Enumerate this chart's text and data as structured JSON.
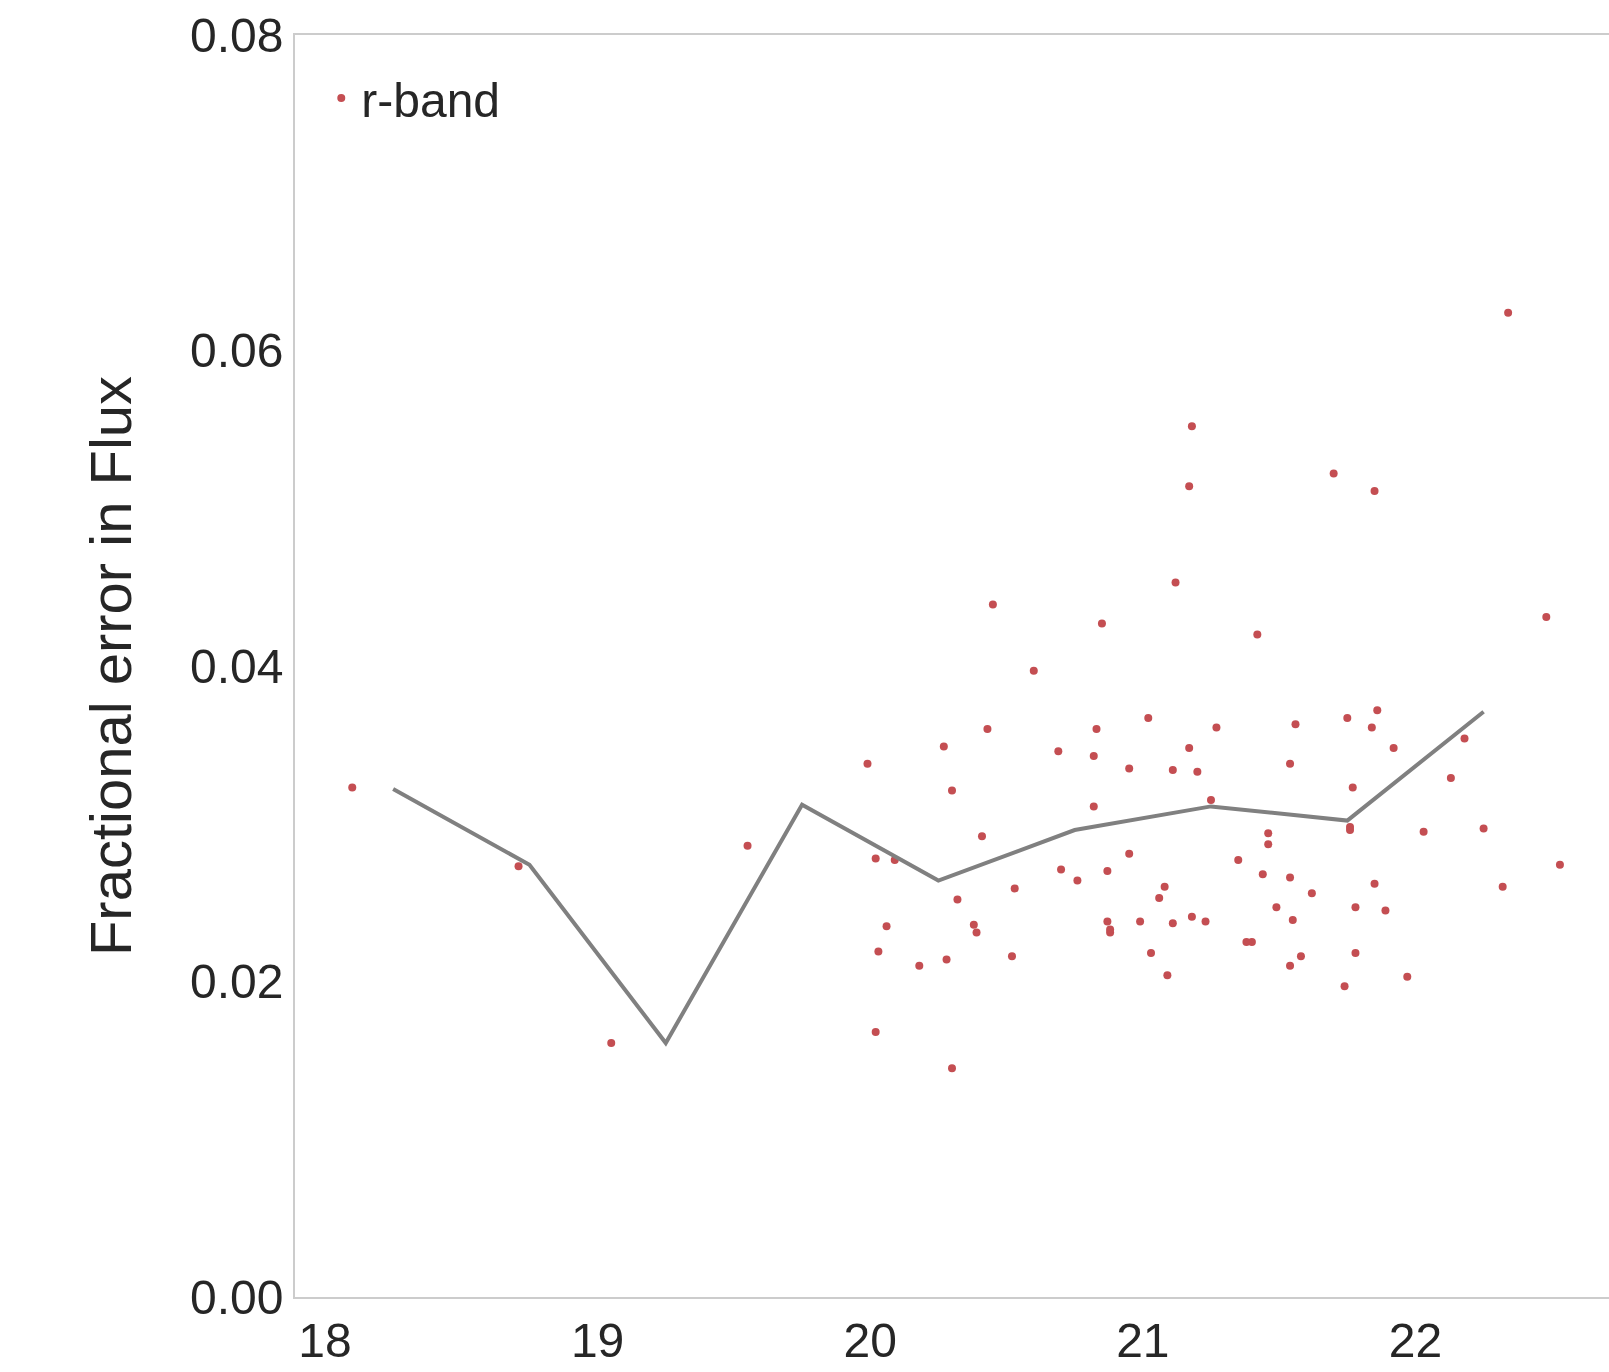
{
  "chart_data": {
    "type": "scatter",
    "ylabel": "Fractional error in Flux",
    "xlim": [
      17.89,
      22.71
    ],
    "ylim": [
      0,
      0.08
    ],
    "xticks": [
      18,
      19,
      20,
      21,
      22
    ],
    "yticks": [
      {
        "value": 0,
        "label": "0.00"
      },
      {
        "value": 0.02,
        "label": "0.02"
      },
      {
        "value": 0.04,
        "label": "0.04"
      },
      {
        "value": 0.06,
        "label": "0.06"
      },
      {
        "value": 0.08,
        "label": "0.08"
      }
    ],
    "grid": false,
    "legend": "top left",
    "series": [
      {
        "name": "r-band",
        "marker": "circle",
        "color": "#c44e52",
        "x": [
          18.1,
          18.71,
          19.05,
          19.55,
          19.99,
          20.02,
          20.09,
          20.06,
          20.03,
          20.02,
          20.18,
          20.27,
          20.3,
          20.28,
          20.32,
          20.3,
          20.38,
          20.39,
          20.41,
          20.43,
          20.45,
          20.52,
          20.53,
          20.6,
          20.69,
          20.7,
          20.76,
          20.82,
          20.82,
          20.83,
          20.85,
          20.87,
          20.87,
          20.88,
          20.88,
          20.95,
          20.95,
          20.99,
          21.02,
          21.03,
          21.06,
          21.08,
          21.09,
          21.11,
          21.11,
          21.12,
          21.17,
          21.18,
          21.17,
          21.18,
          21.2,
          21.23,
          21.25,
          21.27,
          21.35,
          21.38,
          21.4,
          21.42,
          21.44,
          21.46,
          21.46,
          21.49,
          21.54,
          21.54,
          21.54,
          21.55,
          21.56,
          21.58,
          21.62,
          21.7,
          21.74,
          21.75,
          21.76,
          21.76,
          21.77,
          21.78,
          21.78,
          21.85,
          21.84,
          21.86,
          21.85,
          21.89,
          21.92,
          21.97,
          22.03,
          22.13,
          22.18,
          22.25,
          22.32,
          22.34,
          22.48,
          22.53
        ],
        "values": [
          0.0323,
          0.0273,
          0.0161,
          0.0286,
          0.0338,
          0.0278,
          0.0277,
          0.0235,
          0.0219,
          0.0168,
          0.021,
          0.0349,
          0.0321,
          0.0214,
          0.0252,
          0.0145,
          0.0236,
          0.0231,
          0.0292,
          0.036,
          0.0439,
          0.0216,
          0.0259,
          0.0397,
          0.0346,
          0.0271,
          0.0264,
          0.0311,
          0.0343,
          0.036,
          0.0427,
          0.027,
          0.0238,
          0.0231,
          0.0233,
          0.0335,
          0.0281,
          0.0238,
          0.0367,
          0.0218,
          0.0253,
          0.026,
          0.0204,
          0.0237,
          0.0334,
          0.0453,
          0.0514,
          0.0552,
          0.0348,
          0.0241,
          0.0333,
          0.0238,
          0.0315,
          0.0361,
          0.0277,
          0.0225,
          0.0225,
          0.042,
          0.0268,
          0.0294,
          0.0287,
          0.0247,
          0.0338,
          0.0266,
          0.021,
          0.0239,
          0.0363,
          0.0216,
          0.0256,
          0.0522,
          0.0197,
          0.0367,
          0.0298,
          0.0296,
          0.0323,
          0.0247,
          0.0218,
          0.0511,
          0.0361,
          0.0372,
          0.0262,
          0.0245,
          0.0348,
          0.0203,
          0.0295,
          0.0329,
          0.0354,
          0.0297,
          0.026,
          0.0624,
          0.0431,
          0.0274
        ]
      },
      {
        "type": "line",
        "color": "#808080",
        "x": [
          18.25,
          18.75,
          19.25,
          19.75,
          20.25,
          20.75,
          21.25,
          21.75,
          22.25
        ],
        "values": [
          0.0322,
          0.0274,
          0.0161,
          0.0312,
          0.0264,
          0.0296,
          0.0311,
          0.0302,
          0.0371
        ]
      }
    ]
  }
}
